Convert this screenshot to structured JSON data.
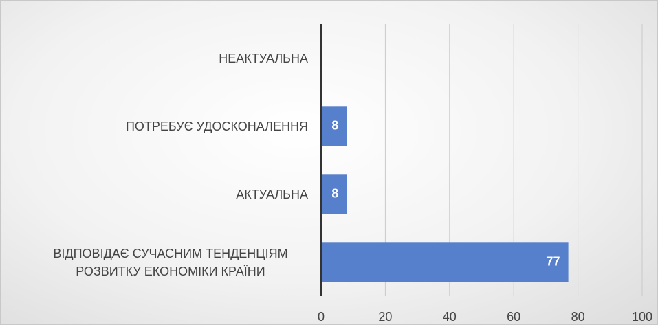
{
  "chart_data": {
    "type": "bar",
    "orientation": "horizontal",
    "categories": [
      "НЕАКТУАЛЬНА",
      "ПОТРЕБУЄ УДОСКОНАЛЕННЯ",
      "АКТУАЛЬНА",
      "ВІДПОВІДАЄ СУЧАСНИМ ТЕНДЕНЦІЯМ РОЗВИТКУ ЕКОНОМІКИ КРАЇНИ"
    ],
    "values": [
      0,
      8,
      8,
      77
    ],
    "color": "#5680cc",
    "xlim": [
      0,
      100
    ],
    "xticks": [
      0,
      20,
      40,
      60,
      80,
      100
    ],
    "grid": true,
    "data_labels": true
  }
}
